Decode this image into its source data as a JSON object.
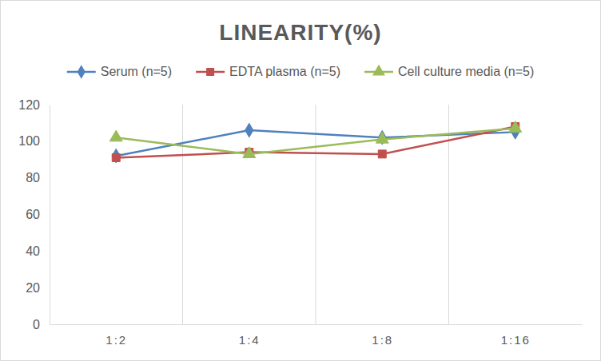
{
  "chart_data": {
    "type": "line",
    "title": "LINEARITY(%)",
    "categories": [
      "1:2",
      "1:4",
      "1:8",
      "1:16"
    ],
    "series": [
      {
        "name": "Serum (n=5)",
        "color": "#4f81bd",
        "marker": "diamond",
        "values": [
          92,
          106,
          102,
          105
        ]
      },
      {
        "name": "EDTA plasma (n=5)",
        "color": "#c0504d",
        "marker": "square",
        "values": [
          91,
          94,
          93,
          108
        ]
      },
      {
        "name": "Cell culture media (n=5)",
        "color": "#9bbb59",
        "marker": "triangle",
        "values": [
          102,
          93,
          101,
          107
        ]
      }
    ],
    "ylim": [
      0,
      120
    ],
    "yticks": [
      0,
      20,
      40,
      60,
      80,
      100,
      120
    ],
    "grid": true,
    "legend": "top"
  }
}
